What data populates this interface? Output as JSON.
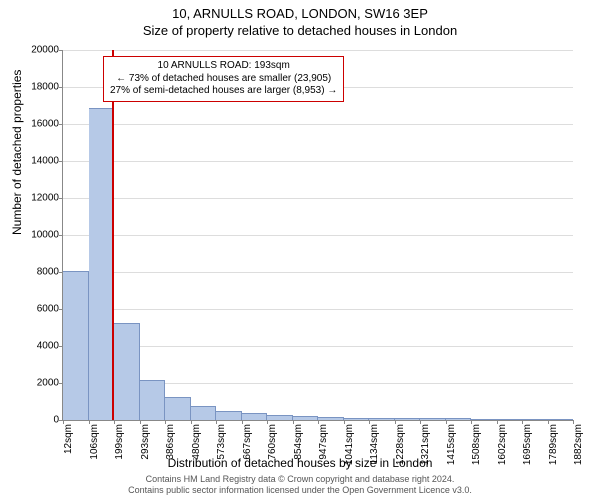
{
  "title_line1": "10, ARNULLS ROAD, LONDON, SW16 3EP",
  "title_line2": "Size of property relative to detached houses in London",
  "ylabel": "Number of detached properties",
  "xlabel": "Distribution of detached houses by size in London",
  "chart": {
    "type": "histogram",
    "background_color": "#ffffff",
    "grid_color": "#dddddd",
    "axis_color": "#888888",
    "ylim": [
      0,
      20000
    ],
    "ytick_step": 2000,
    "yticks": [
      0,
      2000,
      4000,
      6000,
      8000,
      10000,
      12000,
      14000,
      16000,
      18000,
      20000
    ],
    "xticks": [
      "12sqm",
      "106sqm",
      "199sqm",
      "293sqm",
      "386sqm",
      "480sqm",
      "573sqm",
      "667sqm",
      "760sqm",
      "854sqm",
      "947sqm",
      "1041sqm",
      "1134sqm",
      "1228sqm",
      "1321sqm",
      "1415sqm",
      "1508sqm",
      "1602sqm",
      "1695sqm",
      "1789sqm",
      "1882sqm"
    ],
    "bar_color": "#b6c9e7",
    "bar_border": "#7a94c2",
    "bar_values": [
      8000,
      16800,
      5200,
      2100,
      1200,
      700,
      450,
      300,
      200,
      140,
      90,
      70,
      50,
      40,
      30,
      30,
      20,
      15,
      15,
      15
    ],
    "marker": {
      "color": "#cc0000",
      "position_sqm": 193,
      "xmin_sqm": 12,
      "xmax_sqm": 1882
    }
  },
  "callout": {
    "line1": "10 ARNULLS ROAD: 193sqm",
    "line2": "← 73% of detached houses are smaller (23,905)",
    "line3": "27% of semi-detached houses are larger (8,953) →",
    "border_color": "#cc0000"
  },
  "footer": {
    "line1": "Contains HM Land Registry data © Crown copyright and database right 2024.",
    "line2": "Contains public sector information licensed under the Open Government Licence v3.0."
  }
}
